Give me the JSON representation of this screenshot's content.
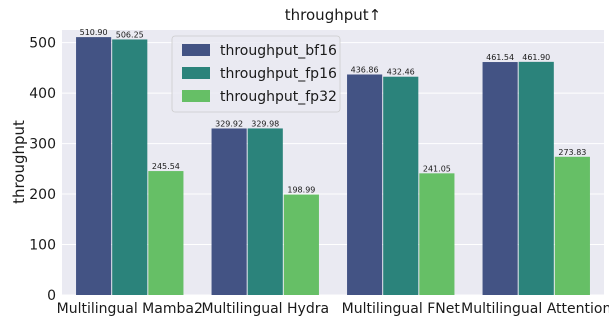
{
  "chart_data": {
    "type": "bar",
    "title": "throughput↑",
    "xlabel": "",
    "ylabel": "throughput",
    "ylim": [
      0,
      525
    ],
    "yticks": [
      0,
      100,
      200,
      300,
      400,
      500
    ],
    "grid": true,
    "legend_position": "top-center",
    "categories": [
      "Multilingual Mamba2",
      "Multilingual Hydra",
      "Multilingual FNet",
      "Multilingual Attention"
    ],
    "series": [
      {
        "name": "throughput_bf16",
        "color": "#435384",
        "values": [
          510.9,
          329.92,
          436.86,
          461.54
        ],
        "labels": [
          "510.90",
          "329.92",
          "436.86",
          "461.54"
        ]
      },
      {
        "name": "throughput_fp16",
        "color": "#2b837b",
        "values": [
          506.25,
          329.98,
          432.46,
          461.9
        ],
        "labels": [
          "506.25",
          "329.98",
          "432.46",
          "461.90"
        ]
      },
      {
        "name": "throughput_fp32",
        "color": "#66bf66",
        "values": [
          245.54,
          198.99,
          241.05,
          273.83
        ],
        "labels": [
          "245.54",
          "198.99",
          "241.05",
          "273.83"
        ]
      }
    ]
  }
}
